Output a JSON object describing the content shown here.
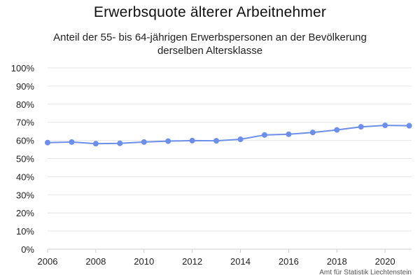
{
  "chart_data": {
    "type": "line",
    "title": "Erwerbsquote älterer Arbeitnehmer",
    "subtitle_lines": [
      "Anteil der 55- bis 64-jährigen Erwerbspersonen an der Bevölkerung",
      "derselben Altersklasse"
    ],
    "x": [
      2006,
      2007,
      2008,
      2009,
      2010,
      2011,
      2012,
      2013,
      2014,
      2015,
      2016,
      2017,
      2018,
      2019,
      2020,
      2021
    ],
    "series": [
      {
        "values": [
          58.8,
          59.1,
          58.2,
          58.4,
          59.1,
          59.6,
          59.9,
          59.8,
          60.6,
          63.0,
          63.4,
          64.4,
          65.8,
          67.5,
          68.3,
          68.1
        ],
        "color": "#6b8fea"
      }
    ],
    "xlim": [
      2006,
      2021.1
    ],
    "ylim": [
      0,
      100
    ],
    "x_ticks": [
      "2006",
      "2008",
      "2010",
      "2012",
      "2014",
      "2016",
      "2018",
      "2020"
    ],
    "y_ticks": [
      "0%",
      "10%",
      "20%",
      "30%",
      "40%",
      "50%",
      "60%",
      "70%",
      "80%",
      "90%",
      "100%"
    ],
    "grid": true,
    "source": "Amt für Statistik Liechtenstein"
  }
}
